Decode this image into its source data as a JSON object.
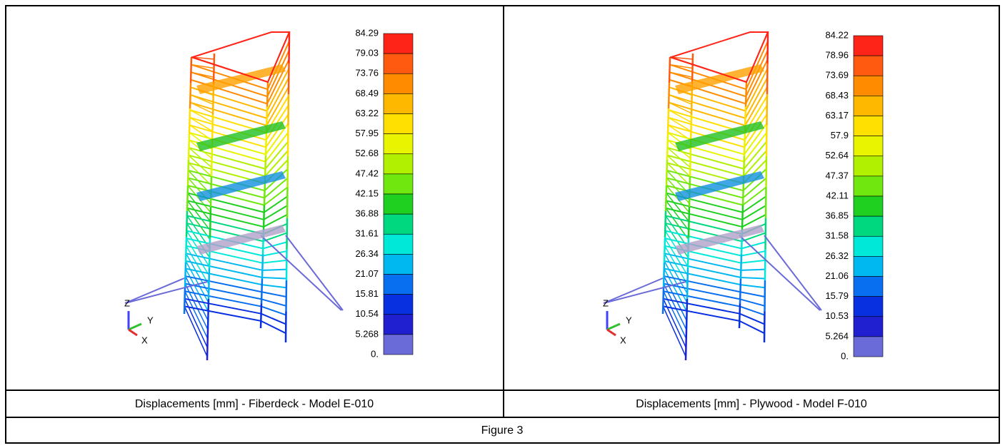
{
  "panels": [
    {
      "scale_labels": [
        "84.29",
        "79.03",
        "73.76",
        "68.49",
        "63.22",
        "57.95",
        "52.68",
        "47.42",
        "42.15",
        "36.88",
        "31.61",
        "26.34",
        "21.07",
        "15.81",
        "10.54",
        "5.268",
        "0."
      ],
      "axes": [
        "Z",
        "Y",
        "X"
      ],
      "caption": "Displacements [mm] - Fiberdeck - Model E-010"
    },
    {
      "scale_labels": [
        "84.22",
        "78.96",
        "73.69",
        "68.43",
        "63.17",
        "57.9",
        "52.64",
        "47.37",
        "42.11",
        "36.85",
        "31.58",
        "26.32",
        "21.06",
        "15.79",
        "10.53",
        "5.264",
        "0."
      ],
      "axes": [
        "Z",
        "Y",
        "X"
      ],
      "caption": "Displacements [mm] - Plywood - Model F-010"
    }
  ],
  "footer": "Figure 3"
}
